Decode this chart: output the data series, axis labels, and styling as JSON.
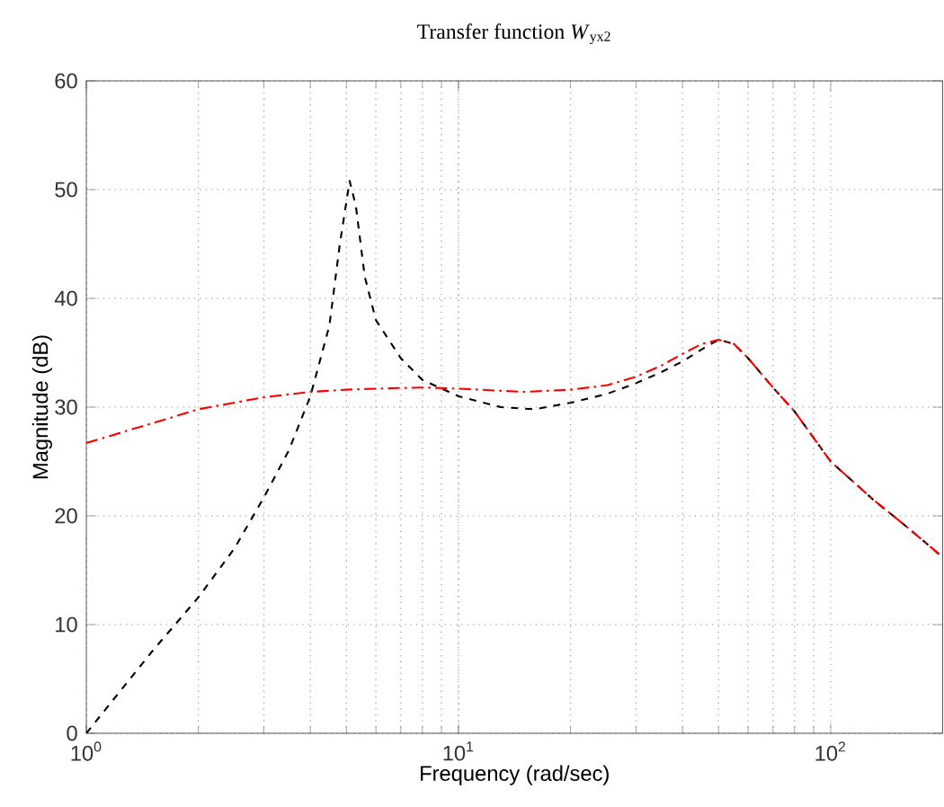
{
  "chart_data": {
    "type": "line",
    "title": "Transfer function *W*$_{yx2}$",
    "xlabel": "Frequency  (rad/sec)",
    "ylabel": "Magnitude (dB)",
    "log": "x",
    "grid": true,
    "xlim": [
      1,
      200
    ],
    "xticks": [
      {
        "value": 1,
        "label": "10$^{0}$"
      },
      {
        "value": 10,
        "label": "10$^{1}$"
      },
      {
        "value": 100,
        "label": "10$^{2}$"
      }
    ],
    "ylim": [
      0,
      60
    ],
    "yticks": [
      0,
      10,
      20,
      30,
      40,
      50,
      60
    ],
    "series": [
      {
        "color": "#000000",
        "line_style": "dashed",
        "x": [
          1,
          1.5,
          2,
          2.5,
          3,
          3.5,
          4,
          4.5,
          4.8,
          5.1,
          5.3,
          5.6,
          6,
          7,
          8,
          10,
          13,
          16,
          20,
          25,
          30,
          35,
          40,
          45,
          50,
          55,
          60,
          70,
          80,
          100,
          130,
          160,
          200
        ],
        "values": [
          0,
          7.5,
          12.5,
          17,
          21.7,
          26,
          31,
          37.5,
          45,
          50.8,
          48.5,
          42,
          38,
          34.5,
          32.5,
          31,
          30,
          29.8,
          30.4,
          31.2,
          32.2,
          33.2,
          34.2,
          35.3,
          36.2,
          35.8,
          34.5,
          31.8,
          29.6,
          25,
          21.5,
          19,
          16.2
        ]
      },
      {
        "color": "#ff0000",
        "line_style": "dashed",
        "x": [
          1,
          1.5,
          2,
          3,
          4,
          5,
          6,
          8,
          10,
          15,
          20,
          25,
          30,
          35,
          40,
          45,
          50,
          55,
          60,
          70,
          80,
          100,
          130,
          160,
          200
        ],
        "values": [
          26.7,
          28.5,
          29.8,
          30.9,
          31.4,
          31.6,
          31.7,
          31.8,
          31.7,
          31.4,
          31.6,
          32,
          32.8,
          33.8,
          34.9,
          35.8,
          36.2,
          35.8,
          34.5,
          31.8,
          29.6,
          25,
          21.5,
          19,
          16.2
        ]
      }
    ]
  }
}
